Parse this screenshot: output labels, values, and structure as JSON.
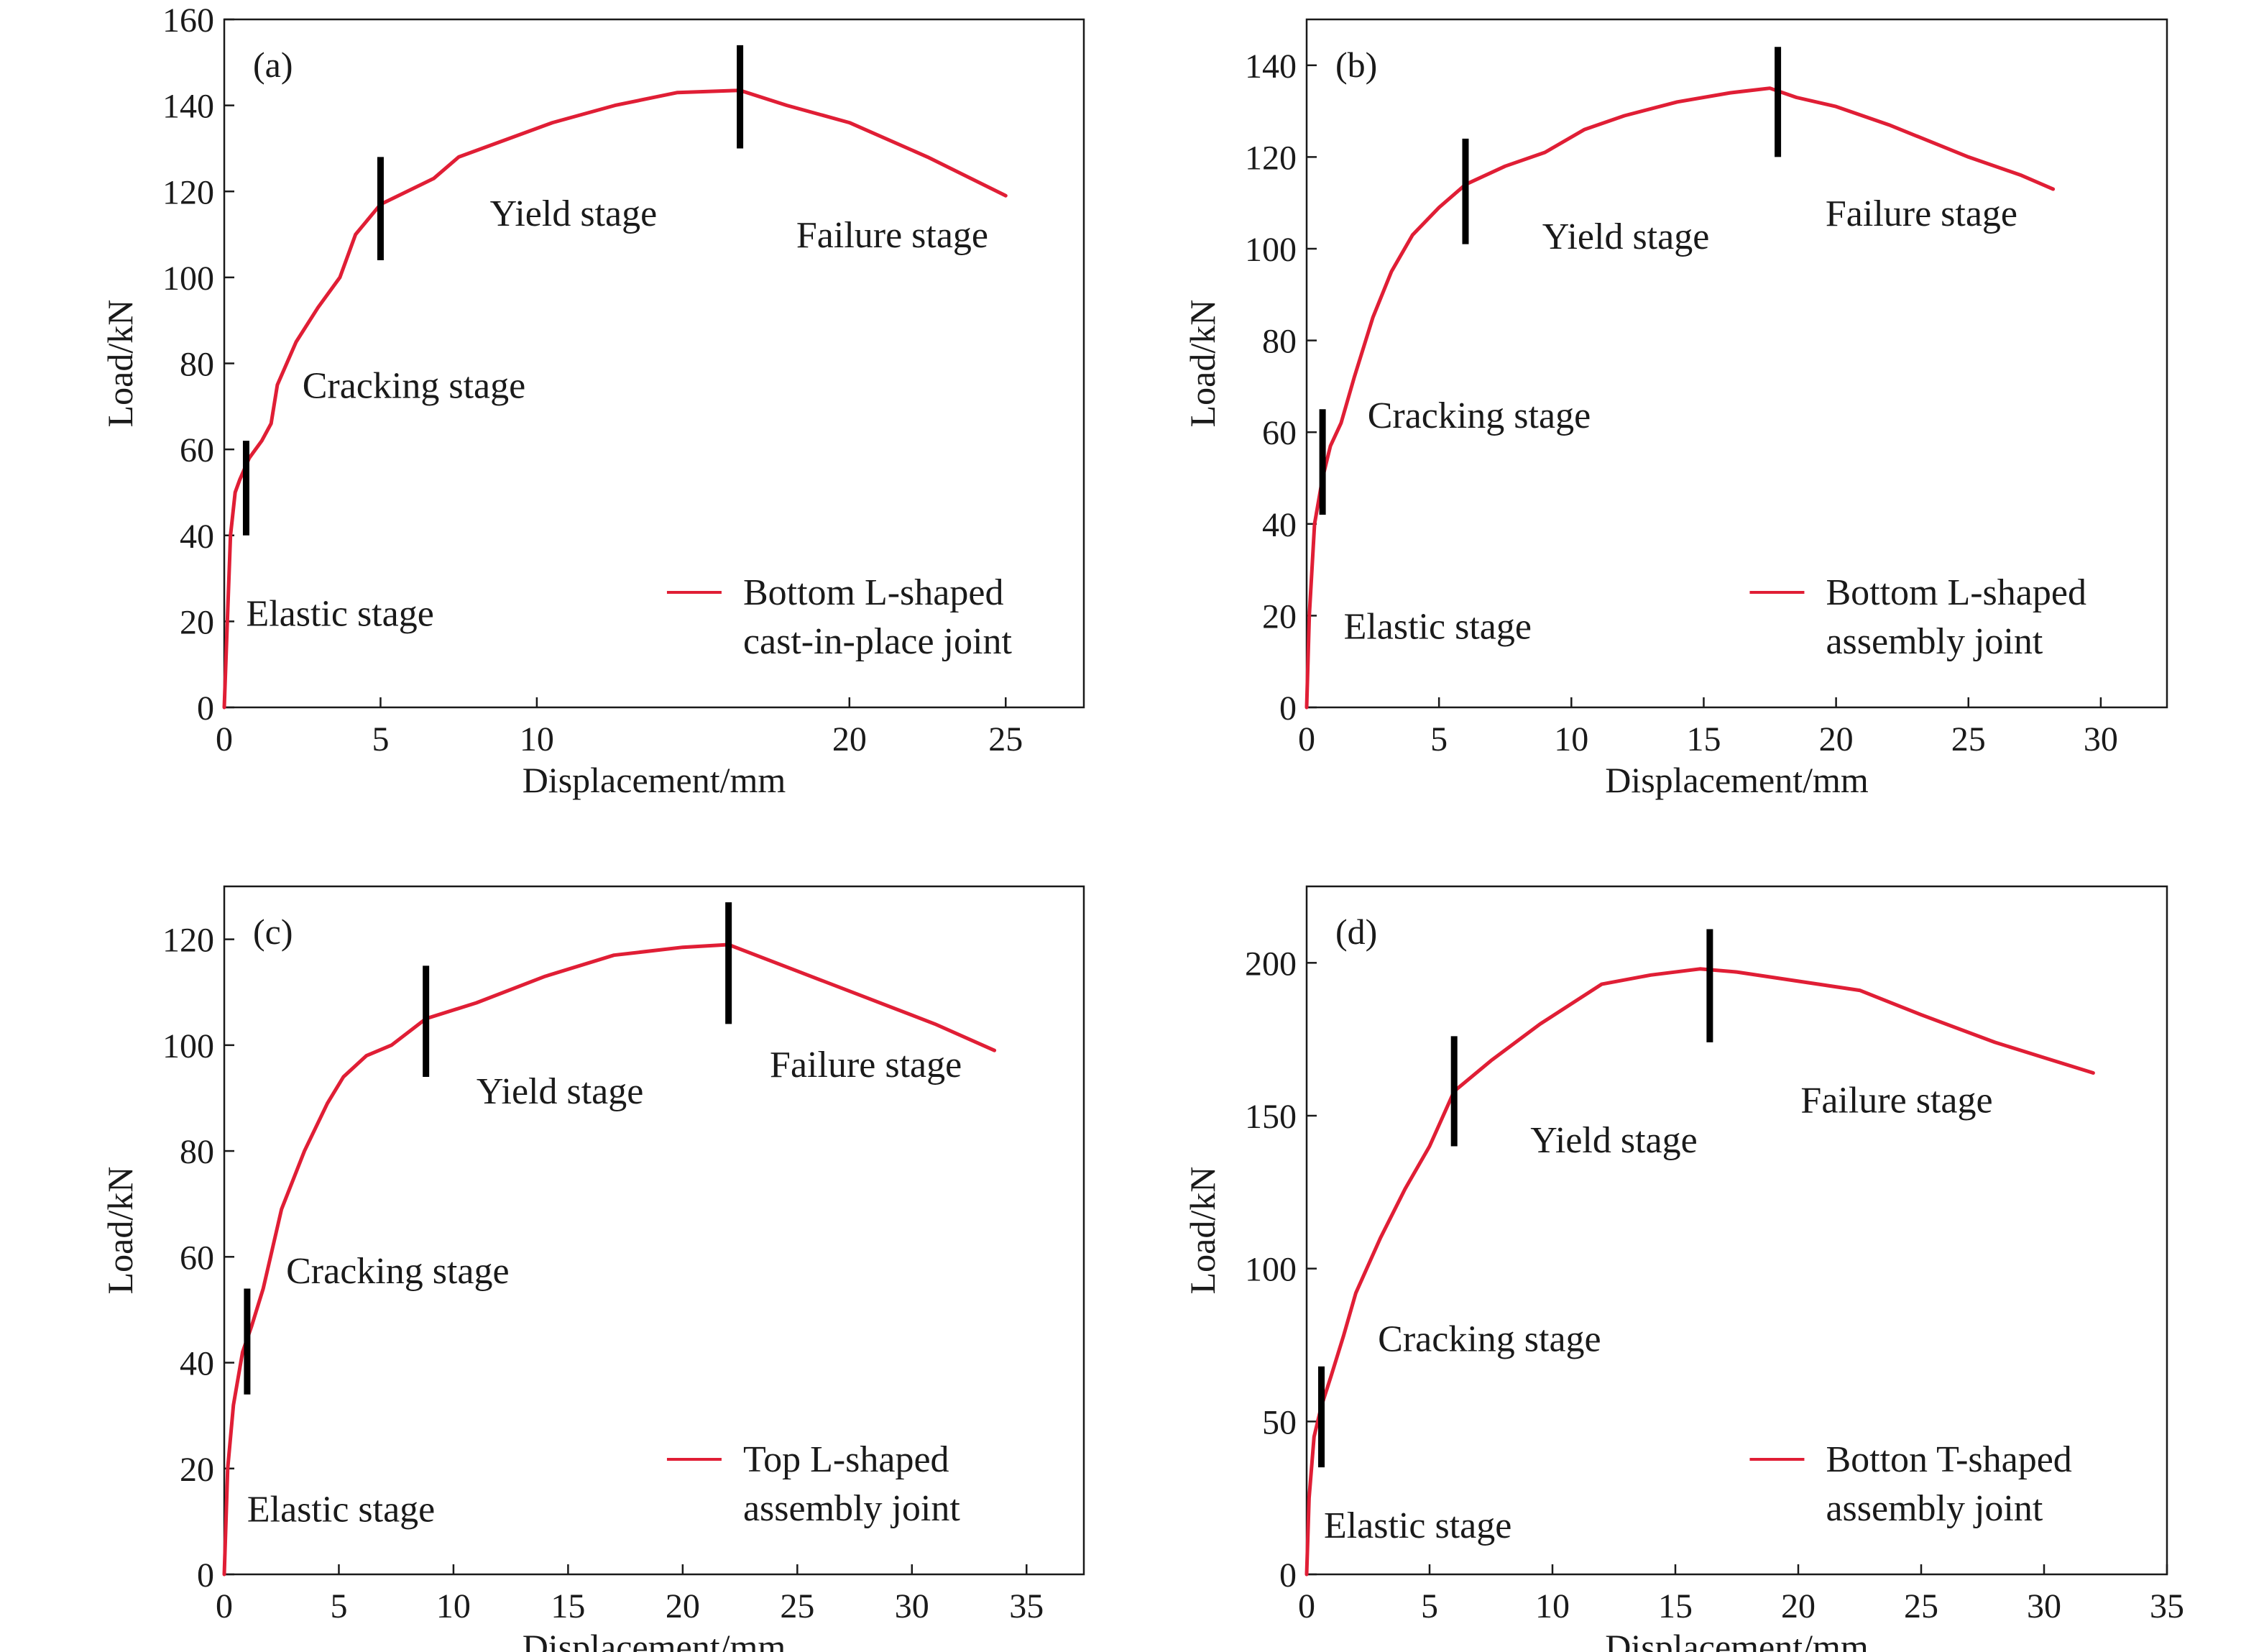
{
  "chart_data": [
    {
      "type": "line",
      "panel_label": "(a)",
      "xlabel": "Displacement/mm",
      "ylabel": "Load/kN",
      "xlim": [
        0,
        27.5
      ],
      "ylim": [
        0,
        160
      ],
      "xticks": [
        0,
        5,
        10,
        20,
        25
      ],
      "yticks": [
        0,
        20,
        40,
        60,
        80,
        100,
        120,
        140,
        160
      ],
      "xtick_labels": [
        "0",
        "5",
        "10",
        "20",
        "25"
      ],
      "ytick_labels": [
        "0",
        "20",
        "40",
        "60",
        "80",
        "100",
        "120",
        "140",
        "160"
      ],
      "series": [
        {
          "color": "#e01e35",
          "legend": [
            "Bottom L-shaped",
            "cast-in-place joint"
          ],
          "x": [
            0,
            0.1,
            0.2,
            0.35,
            0.5,
            0.8,
            1.2,
            1.5,
            1.7,
            2.3,
            3.0,
            3.7,
            4.2,
            5.0,
            6.7,
            7.5,
            9.0,
            10.5,
            11.5,
            12.5,
            14.5,
            16.5,
            18.0,
            20.0,
            22.5,
            25.0
          ],
          "y": [
            0,
            20,
            40,
            50,
            53,
            58,
            62,
            66,
            75,
            85,
            93,
            100,
            110,
            117,
            123,
            128,
            132,
            136,
            138,
            140,
            143,
            143.5,
            140,
            136,
            128,
            119
          ]
        }
      ],
      "stage_markers": [
        {
          "x": 0.7,
          "y_low": 40,
          "y_high": 62
        },
        {
          "x": 5.0,
          "y_low": 104,
          "y_high": 128
        },
        {
          "x": 16.5,
          "y_low": 130,
          "y_high": 154
        }
      ],
      "annotations": [
        {
          "text": "Elastic stage",
          "x": 0.7,
          "y": 19
        },
        {
          "text": "Cracking stage",
          "x": 2.5,
          "y": 72
        },
        {
          "text": "Yield stage",
          "x": 8.5,
          "y": 112
        },
        {
          "text": "Failure stage",
          "x": 18.3,
          "y": 107
        }
      ],
      "legend_placement": "bottom-right"
    },
    {
      "type": "line",
      "panel_label": "(b)",
      "xlabel": "Displacement/mm",
      "ylabel": "Load/kN",
      "xlim": [
        0,
        32.5
      ],
      "ylim": [
        0,
        150
      ],
      "xticks": [
        0,
        5,
        10,
        15,
        20,
        25,
        30
      ],
      "yticks": [
        0,
        20,
        40,
        60,
        80,
        100,
        120,
        140
      ],
      "xtick_labels": [
        "0",
        "5",
        "10",
        "15",
        "20",
        "25",
        "30"
      ],
      "ytick_labels": [
        "0",
        "20",
        "40",
        "60",
        "80",
        "100",
        "120",
        "140"
      ],
      "series": [
        {
          "color": "#e01e35",
          "legend": [
            "Bottom L-shaped",
            "assembly joint"
          ],
          "x": [
            0,
            0.1,
            0.3,
            0.6,
            0.9,
            1.3,
            1.8,
            2.5,
            3.2,
            4.0,
            5.0,
            6.0,
            7.5,
            9.0,
            10.5,
            12.0,
            14.0,
            16.0,
            17.5,
            18.5,
            20.0,
            22.0,
            25.0,
            27.0,
            28.2
          ],
          "y": [
            0,
            20,
            40,
            50,
            57,
            62,
            72,
            85,
            95,
            103,
            109,
            114,
            118,
            121,
            126,
            129,
            132,
            134,
            135,
            133,
            131,
            127,
            120,
            116,
            113
          ]
        }
      ],
      "stage_markers": [
        {
          "x": 0.6,
          "y_low": 42,
          "y_high": 65
        },
        {
          "x": 6.0,
          "y_low": 101,
          "y_high": 124
        },
        {
          "x": 17.8,
          "y_low": 120,
          "y_high": 144
        }
      ],
      "annotations": [
        {
          "text": "Elastic stage",
          "x": 1.4,
          "y": 15
        },
        {
          "text": "Cracking stage",
          "x": 2.3,
          "y": 61
        },
        {
          "text": "Yield stage",
          "x": 8.9,
          "y": 100
        },
        {
          "text": "Failure stage",
          "x": 19.6,
          "y": 105
        }
      ],
      "legend_placement": "bottom-right"
    },
    {
      "type": "line",
      "panel_label": "(c)",
      "xlabel": "Displacement/mm",
      "ylabel": "Load/kN",
      "xlim": [
        0,
        37.5
      ],
      "ylim": [
        0,
        130
      ],
      "xticks": [
        0,
        5,
        10,
        15,
        20,
        25,
        30,
        35
      ],
      "yticks": [
        0,
        20,
        40,
        60,
        80,
        100,
        120
      ],
      "xtick_labels": [
        "0",
        "5",
        "10",
        "15",
        "20",
        "25",
        "30",
        "35"
      ],
      "ytick_labels": [
        "0",
        "20",
        "40",
        "60",
        "80",
        "100",
        "120"
      ],
      "series": [
        {
          "color": "#e01e35",
          "legend": [
            "Top L-shaped",
            "assembly joint"
          ],
          "x": [
            0,
            0.15,
            0.4,
            0.8,
            1.2,
            1.7,
            2.5,
            3.5,
            4.5,
            5.2,
            6.2,
            7.3,
            8.8,
            11.0,
            14.0,
            17.0,
            20.0,
            22.0,
            25.0,
            28.0,
            31.0,
            33.6
          ],
          "y": [
            0,
            20,
            32,
            42,
            47,
            54,
            69,
            80,
            89,
            94,
            98,
            100,
            105,
            108,
            113,
            117,
            118.5,
            119,
            114,
            109,
            104,
            99
          ]
        }
      ],
      "stage_markers": [
        {
          "x": 1.0,
          "y_low": 34,
          "y_high": 54
        },
        {
          "x": 8.8,
          "y_low": 94,
          "y_high": 115
        },
        {
          "x": 22.0,
          "y_low": 104,
          "y_high": 127
        }
      ],
      "annotations": [
        {
          "text": "Elastic stage",
          "x": 1.0,
          "y": 10
        },
        {
          "text": "Cracking stage",
          "x": 2.7,
          "y": 55
        },
        {
          "text": "Yield stage",
          "x": 11.0,
          "y": 89
        },
        {
          "text": "Failure stage",
          "x": 23.8,
          "y": 94
        }
      ],
      "legend_placement": "bottom-right"
    },
    {
      "type": "line",
      "panel_label": "(d)",
      "xlabel": "Displacement/mm",
      "ylabel": "Load/kN",
      "xlim": [
        0,
        35
      ],
      "ylim": [
        0,
        225
      ],
      "xticks": [
        0,
        5,
        10,
        15,
        20,
        25,
        30,
        35
      ],
      "yticks": [
        0,
        50,
        100,
        150,
        200
      ],
      "xtick_labels": [
        "0",
        "5",
        "10",
        "15",
        "20",
        "25",
        "30",
        "35"
      ],
      "ytick_labels": [
        "0",
        "50",
        "100",
        "150",
        "200"
      ],
      "series": [
        {
          "color": "#e01e35",
          "legend": [
            "Botton T-shaped",
            "assembly joint"
          ],
          "x": [
            0,
            0.1,
            0.3,
            0.6,
            1.0,
            1.5,
            2.0,
            3.0,
            4.0,
            5.0,
            6.0,
            7.5,
            9.5,
            12.0,
            14.0,
            16.0,
            17.5,
            20.0,
            22.5,
            25.0,
            28.0,
            30.0,
            32.0
          ],
          "y": [
            0,
            25,
            45,
            55,
            65,
            78,
            92,
            110,
            126,
            140,
            158,
            168,
            180,
            193,
            196,
            198,
            197,
            194,
            191,
            183,
            174,
            169,
            164
          ]
        }
      ],
      "stage_markers": [
        {
          "x": 0.6,
          "y_low": 35,
          "y_high": 68
        },
        {
          "x": 6.0,
          "y_low": 140,
          "y_high": 176
        },
        {
          "x": 16.4,
          "y_low": 174,
          "y_high": 211
        }
      ],
      "annotations": [
        {
          "text": "Elastic stage",
          "x": 0.7,
          "y": 12
        },
        {
          "text": "Cracking stage",
          "x": 2.9,
          "y": 73
        },
        {
          "text": "Yield stage",
          "x": 9.1,
          "y": 138
        },
        {
          "text": "Failure stage",
          "x": 20.1,
          "y": 151
        }
      ],
      "legend_placement": "bottom-right"
    }
  ]
}
